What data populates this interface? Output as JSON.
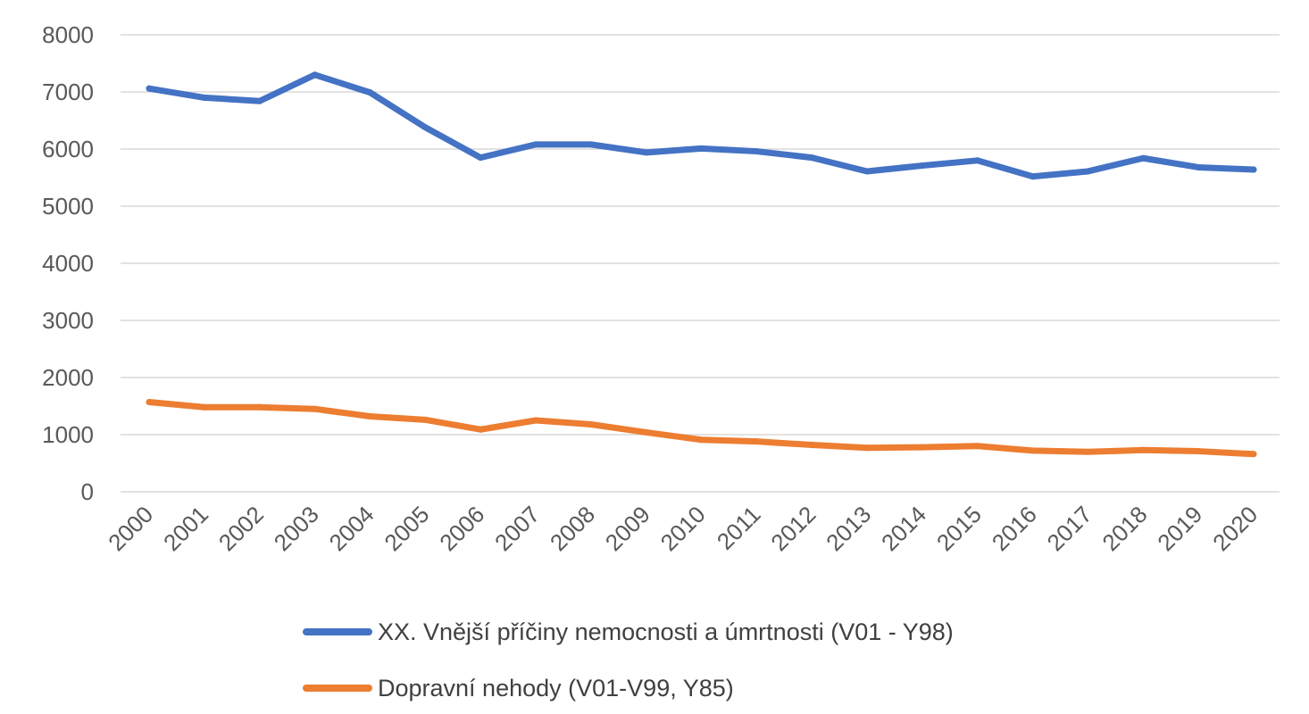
{
  "chart_data": {
    "type": "line",
    "title": "",
    "xlabel": "",
    "ylabel": "",
    "ylim": [
      0,
      8000
    ],
    "yticks": [
      0,
      1000,
      2000,
      3000,
      4000,
      5000,
      6000,
      7000,
      8000
    ],
    "grid": true,
    "legend_position": "bottom",
    "categories": [
      "2000",
      "2001",
      "2002",
      "2003",
      "2004",
      "2005",
      "2006",
      "2007",
      "2008",
      "2009",
      "2010",
      "2011",
      "2012",
      "2013",
      "2014",
      "2015",
      "2016",
      "2017",
      "2018",
      "2019",
      "2020"
    ],
    "series": [
      {
        "name": "XX. Vnější příčiny nemocnosti a úmrtnosti (V01 - Y98)",
        "color": "#4472c4",
        "values": [
          7060,
          6900,
          6840,
          7300,
          6990,
          6380,
          5850,
          6080,
          6080,
          5940,
          6010,
          5960,
          5850,
          5610,
          5710,
          5800,
          5520,
          5610,
          5840,
          5680,
          5640
        ]
      },
      {
        "name": "Dopravní nehody (V01-V99, Y85)",
        "color": "#ed7d31",
        "values": [
          1570,
          1480,
          1480,
          1450,
          1320,
          1260,
          1090,
          1250,
          1180,
          1040,
          910,
          880,
          820,
          770,
          780,
          800,
          720,
          700,
          730,
          710,
          660
        ]
      }
    ]
  }
}
